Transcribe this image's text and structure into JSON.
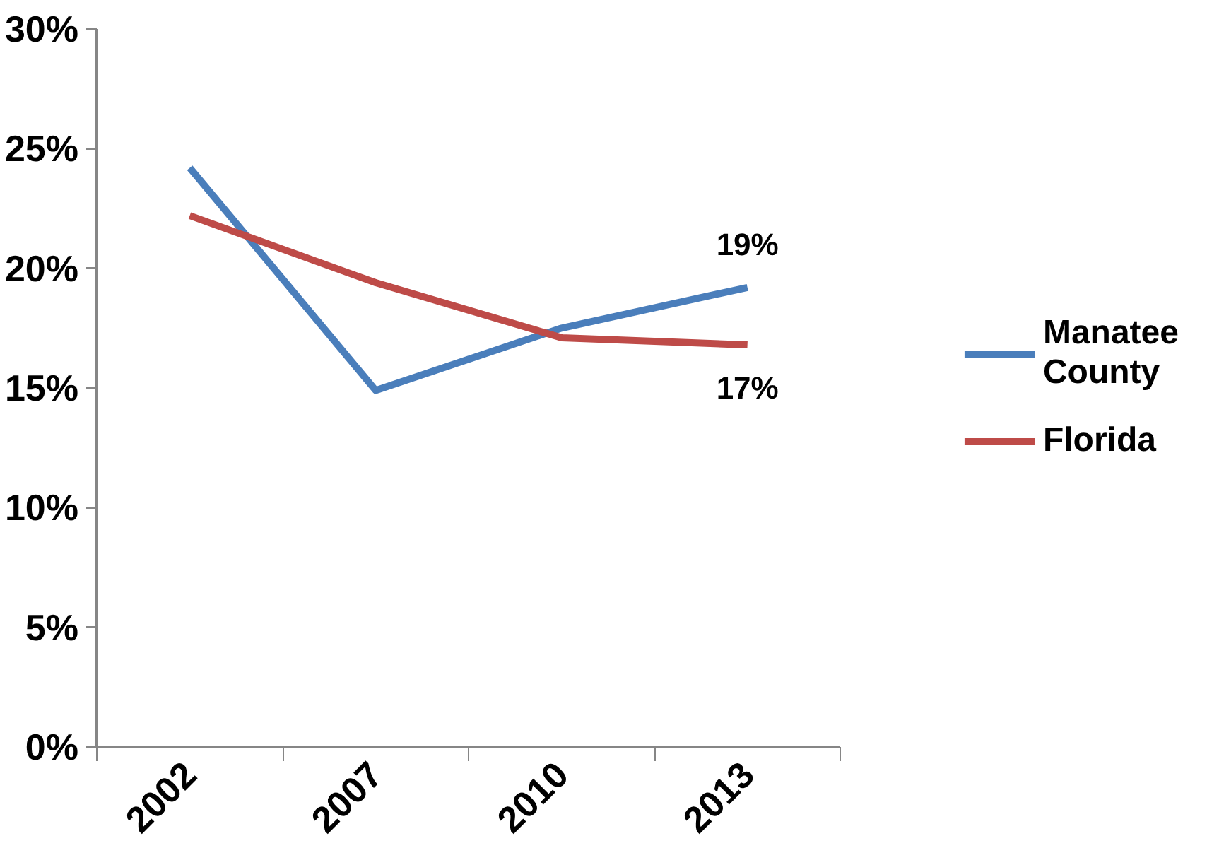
{
  "chart_data": {
    "type": "line",
    "categories": [
      "2002",
      "2007",
      "2010",
      "2013"
    ],
    "series": [
      {
        "name": "Manatee County",
        "color": "#4a7ebb",
        "values": [
          24.2,
          14.9,
          17.5,
          19.2
        ],
        "value_labels": [
          null,
          null,
          null,
          "19%"
        ]
      },
      {
        "name": "Florida",
        "color": "#be4b48",
        "values": [
          22.2,
          19.4,
          17.1,
          16.8
        ],
        "value_labels": [
          null,
          null,
          null,
          "17%"
        ]
      }
    ],
    "ylim": [
      0,
      30
    ],
    "yticks": [
      {
        "value": 0,
        "label": "0%"
      },
      {
        "value": 5,
        "label": "5%"
      },
      {
        "value": 10,
        "label": "10%"
      },
      {
        "value": 15,
        "label": "15%"
      },
      {
        "value": 20,
        "label": "20%"
      },
      {
        "value": 25,
        "label": "25%"
      },
      {
        "value": 30,
        "label": "30%"
      }
    ],
    "grid": false,
    "legend": "right",
    "marker": "none",
    "line_style": "solid"
  }
}
